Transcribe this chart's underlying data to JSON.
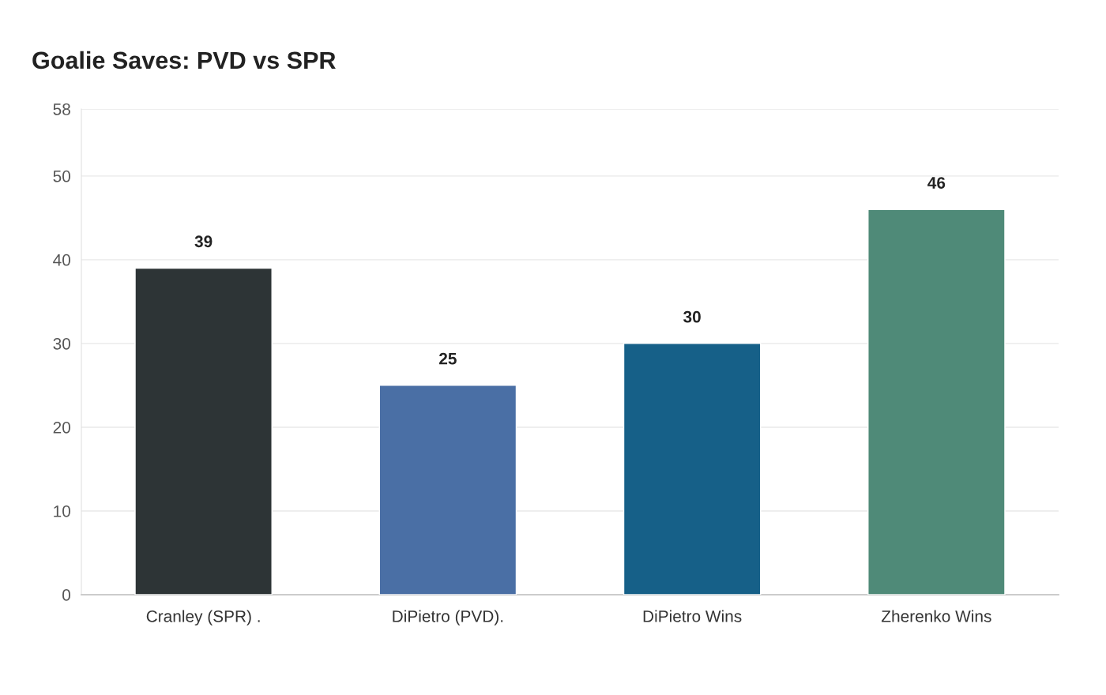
{
  "chart_data": {
    "type": "bar",
    "title": "Goalie Saves: PVD vs SPR",
    "categories": [
      "Cranley (SPR) .",
      "DiPietro (PVD).",
      "DiPietro Wins",
      "Zherenko Wins"
    ],
    "values": [
      39,
      25,
      30,
      46
    ],
    "colors": [
      "#2d3436",
      "#4a6fa5",
      "#166088",
      "#4f8a78"
    ],
    "ylim": [
      0,
      58
    ],
    "yticks": [
      0,
      10,
      20,
      30,
      40,
      50,
      58
    ],
    "grid": "y",
    "data_labels": true
  }
}
